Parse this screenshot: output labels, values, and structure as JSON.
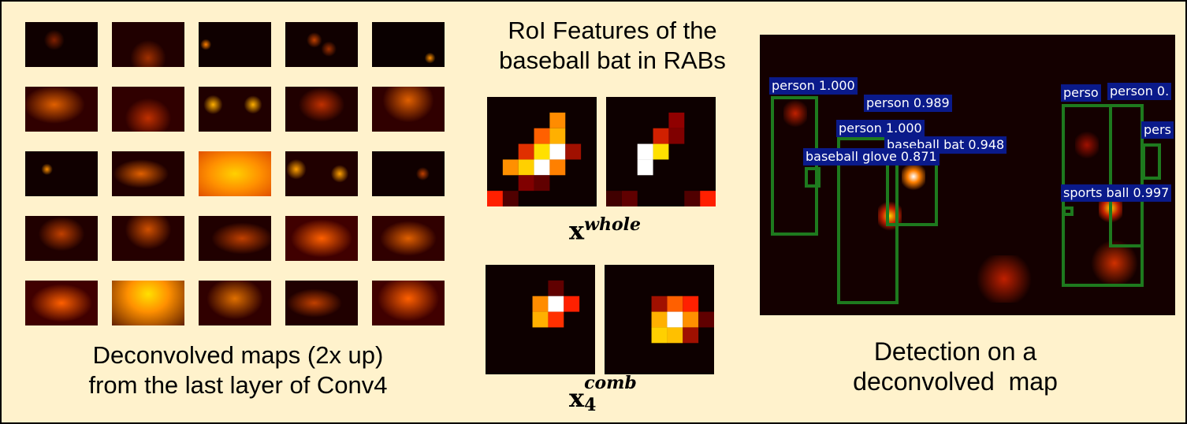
{
  "left_panel": {
    "caption_line1": "Deconvolved maps (2x up)",
    "caption_line2": "from the last layer of Conv4"
  },
  "middle_panel": {
    "title_line1": "RoI Features of the",
    "title_line2": "baseball bat in RABs",
    "label_top_base": "x",
    "label_top_sup": "whole",
    "label_bottom_base": "x",
    "label_bottom_sub": "4",
    "label_bottom_sup": "comb"
  },
  "right_panel": {
    "caption_line1": "Detection on a",
    "caption_line2": "deconvolved  map",
    "detections": [
      {
        "label": "person 1.000"
      },
      {
        "label": "person 0.989"
      },
      {
        "label": "person 1.000"
      },
      {
        "label": "baseball bat 0.948"
      },
      {
        "label": "baseball glove 0.871"
      },
      {
        "label": "perso"
      },
      {
        "label": "person 0."
      },
      {
        "label": "pers"
      },
      {
        "label": "sports ball 0.997"
      }
    ]
  }
}
